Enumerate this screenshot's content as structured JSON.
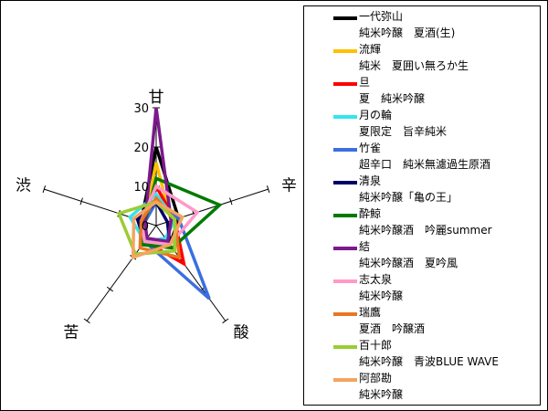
{
  "chart_data": {
    "type": "radar",
    "axes": [
      "甘",
      "辛",
      "酸",
      "苦",
      "渋"
    ],
    "r_ticks": [
      "0",
      "10",
      "20",
      "30"
    ],
    "r_max": 30,
    "legend_position": "right",
    "series": [
      {
        "name": "一代弥山",
        "subtitle": "純米吟醸　夏酒(生)",
        "color": "#000000",
        "values": [
          20,
          6,
          6,
          5,
          4
        ]
      },
      {
        "name": "流輝",
        "subtitle": "純米　夏囲い無ろか生",
        "color": "#FFC000",
        "values": [
          16,
          4,
          5,
          4,
          3
        ]
      },
      {
        "name": "旦",
        "subtitle": "夏　純米吟醸",
        "color": "#FF0000",
        "values": [
          10,
          5,
          12,
          5,
          4
        ]
      },
      {
        "name": "月の輪",
        "subtitle": "夏限定　旨辛純米",
        "color": "#33E5F0",
        "values": [
          8,
          5,
          4,
          5,
          7
        ]
      },
      {
        "name": "竹雀",
        "subtitle": "超辛口　純米無濾過生原酒",
        "color": "#3A6FE0",
        "values": [
          6,
          6,
          23,
          5,
          3
        ]
      },
      {
        "name": "清泉",
        "subtitle": "純米吟醸「亀の王」",
        "color": "#000066",
        "values": [
          6,
          3,
          6,
          5,
          5
        ]
      },
      {
        "name": "酔鯨",
        "subtitle": "純米吟醸酒　吟麗summer",
        "color": "#007A00",
        "values": [
          12,
          17,
          7,
          6,
          3
        ]
      },
      {
        "name": "結",
        "subtitle": "純米吟醸酒　夏吟風",
        "color": "#7B1A8C",
        "values": [
          30,
          4,
          5,
          4,
          3
        ]
      },
      {
        "name": "志太泉",
        "subtitle": "純米吟醸",
        "color": "#FF9AC8",
        "values": [
          10,
          11,
          6,
          5,
          4
        ]
      },
      {
        "name": "瑞鷹",
        "subtitle": "夏酒　吟醸酒",
        "color": "#E87722",
        "values": [
          7,
          5,
          10,
          7,
          4
        ]
      },
      {
        "name": "百十郎",
        "subtitle": "純米吟醸　青波BLUE WAVE",
        "color": "#9ACD32",
        "values": [
          6,
          5,
          8,
          9,
          10
        ]
      },
      {
        "name": "阿部勘",
        "subtitle": "純米吟醸",
        "color": "#F4A460",
        "values": [
          6,
          7,
          6,
          10,
          6
        ]
      }
    ]
  }
}
